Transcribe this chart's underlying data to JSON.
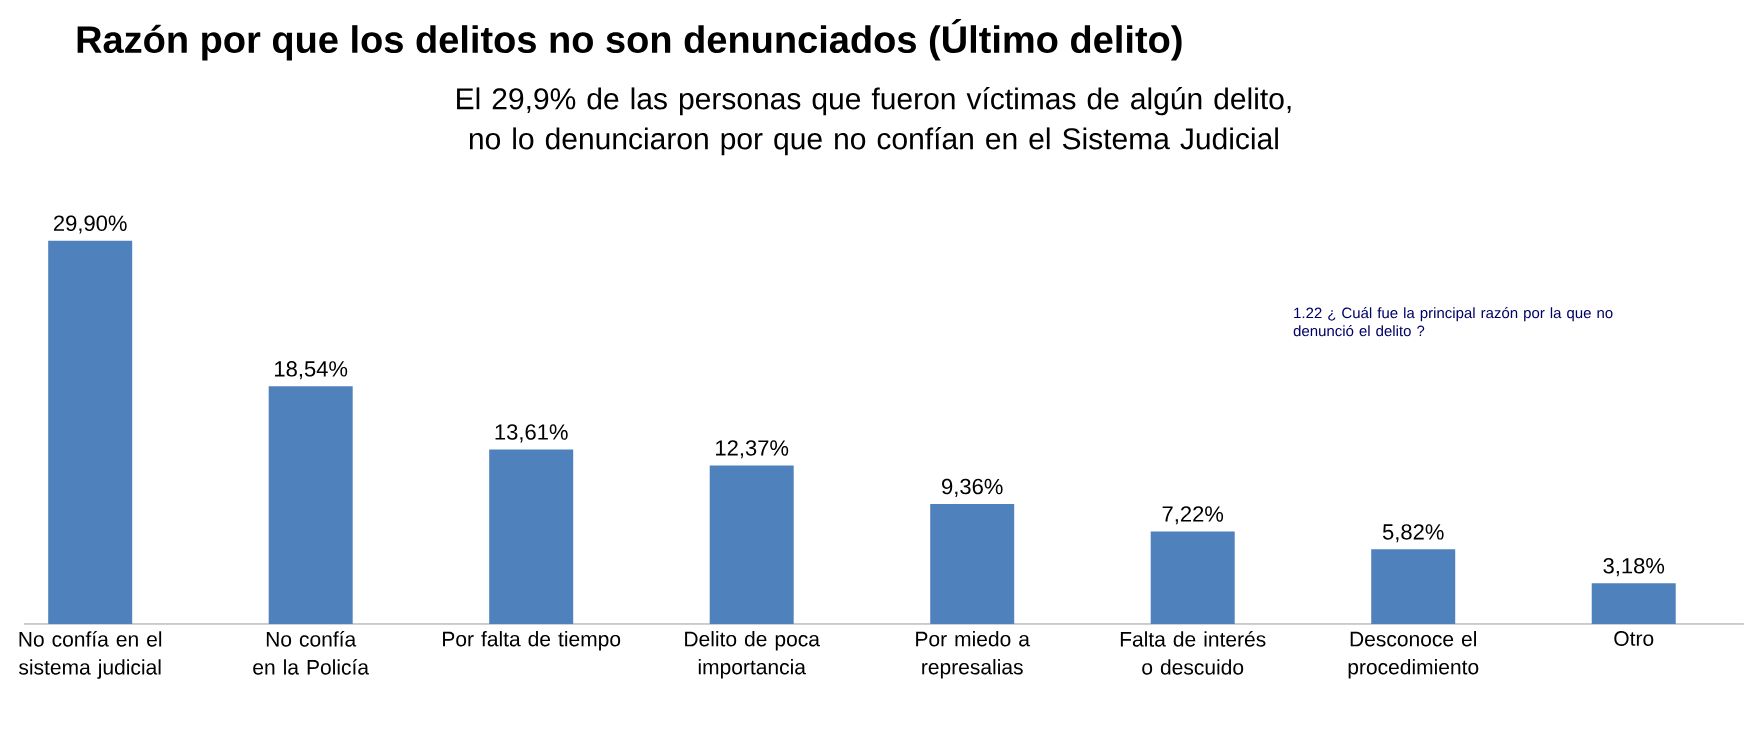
{
  "chart_data": {
    "type": "bar",
    "title": "Razón por que los delitos no son denunciados (Último delito)",
    "subtitle": "El 29,9% de las personas que fueron víctimas de algún delito, no lo denunciaron por que no confían en el Sistema Judicial",
    "categories": [
      "No confía en el sistema judicial",
      "No confía en la Policía",
      "Por falta de tiempo",
      "Delito de poca importancia",
      "Por miedo a represalias",
      "Falta de interés o descuido",
      "Desconoce el procedimiento",
      "Otro"
    ],
    "values": [
      29.9,
      18.54,
      13.61,
      12.37,
      9.36,
      7.22,
      5.82,
      3.18
    ],
    "value_labels": [
      "29,90%",
      "18,54%",
      "13,61%",
      "12,37%",
      "9,36%",
      "7,22%",
      "5,82%",
      "3,18%"
    ],
    "color": "#4f81bd",
    "annotations": [
      "1.22 ¿ Cuál fue la principal razón por la que no denunció el delito ?"
    ]
  }
}
